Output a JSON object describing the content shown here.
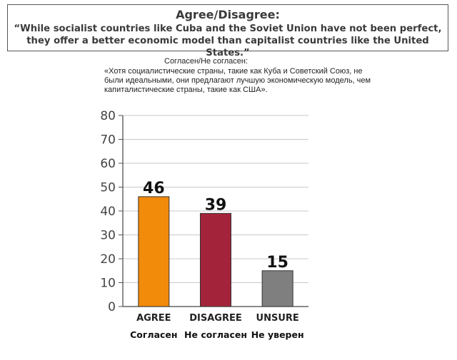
{
  "header": {
    "title": "Agree/Disagree:",
    "question": "“While socialist countries like Cuba and the Soviet Union have not been perfect, they offer a better economic model than capitalist countries like the United States.”"
  },
  "ru_text": {
    "title": "Согласен/Не согласен:",
    "question": "«Хотя социалистические страны, такие как Куба и Советский Союз, не были идеальными, они предлагают лучшую экономическую модель, чем капиталистические страны, такие как США»."
  },
  "chart_data": {
    "type": "bar",
    "categories": [
      "AGREE",
      "DISAGREE",
      "UNSURE"
    ],
    "categories_ru": [
      "Согласен",
      "Не согласен",
      "Не уверен"
    ],
    "values": [
      46,
      39,
      15
    ],
    "value_labels": [
      "46",
      "39",
      "15"
    ],
    "colors": [
      "#f28a0a",
      "#a3243a",
      "#7f7f7f"
    ],
    "ylim": [
      0,
      80
    ],
    "yticks": [
      0,
      10,
      20,
      30,
      40,
      50,
      60,
      70,
      80
    ],
    "grid": true,
    "title": "",
    "xlabel": "",
    "ylabel": ""
  }
}
